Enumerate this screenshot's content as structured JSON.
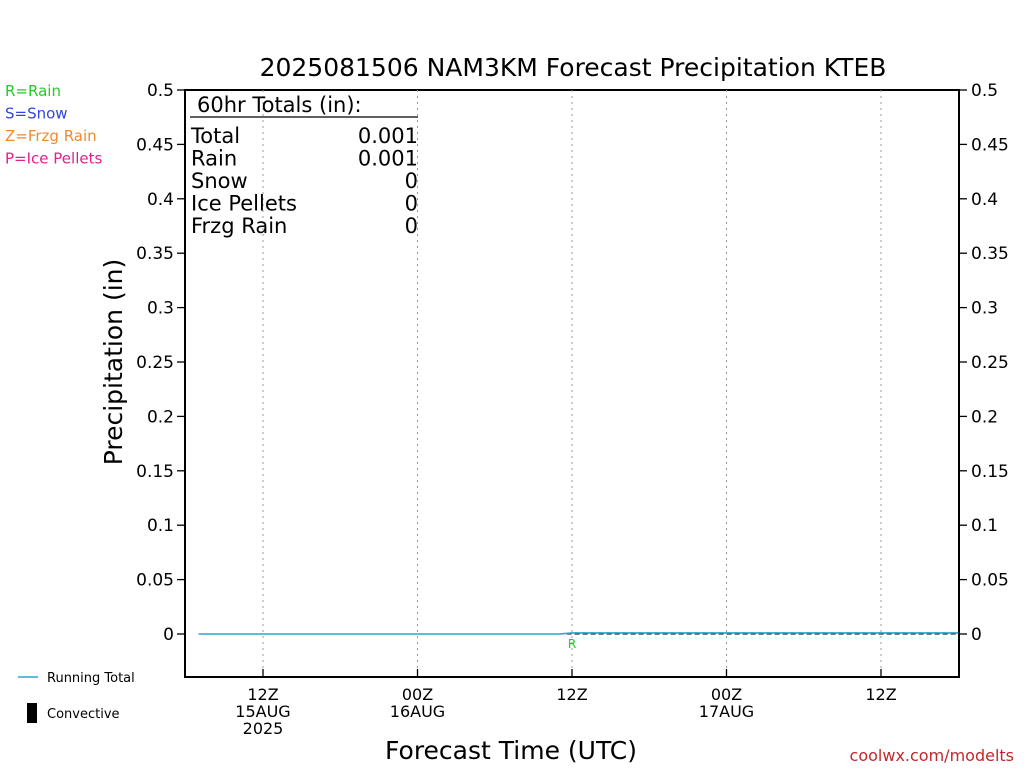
{
  "title": "2025081506 NAM3KM Forecast Precipitation KTEB",
  "xlabel": "Forecast Time (UTC)",
  "ylabel": "Precipitation (in)",
  "credit": "coolwx.com/modelts",
  "legend_left": [
    {
      "text": "R=Rain",
      "color": "#22cc22"
    },
    {
      "text": "S=Snow",
      "color": "#3344dd"
    },
    {
      "text": "Z=Frzg Rain",
      "color": "#f08a30"
    },
    {
      "text": "P=Ice Pellets",
      "color": "#e0208c"
    }
  ],
  "legend_bottom": {
    "running_total": "Running Total",
    "running_total_color": "#22aacc",
    "convective": "Convective",
    "convective_color": "#000000"
  },
  "totals_box": {
    "header": "60hr Totals (in):",
    "rows": [
      {
        "label": "Total",
        "value": "0.001"
      },
      {
        "label": "Rain",
        "value": "0.001"
      },
      {
        "label": "Snow",
        "value": "0"
      },
      {
        "label": "Ice Pellets",
        "value": "0"
      },
      {
        "label": "Frzg Rain",
        "value": "0"
      }
    ]
  },
  "chart_data": {
    "type": "line",
    "title": "2025081506 NAM3KM Forecast Precipitation KTEB",
    "xlabel": "Forecast Time (UTC)",
    "ylabel": "Precipitation (in)",
    "ylim": [
      -0.04,
      0.5
    ],
    "xlim_hours": [
      0,
      60
    ],
    "y_ticks": [
      0,
      0.05,
      0.1,
      0.15,
      0.2,
      0.25,
      0.3,
      0.35,
      0.4,
      0.45,
      0.5
    ],
    "y_tick_labels": [
      "0",
      "0.05",
      "0.1",
      "0.15",
      "0.2",
      "0.25",
      "0.3",
      "0.35",
      "0.4",
      "0.45",
      "0.5"
    ],
    "x_ticks": [
      {
        "hour": 6,
        "lines": [
          "12Z",
          "15AUG",
          "2025"
        ]
      },
      {
        "hour": 18,
        "lines": [
          "00Z",
          "16AUG"
        ]
      },
      {
        "hour": 30,
        "lines": [
          "12Z"
        ]
      },
      {
        "hour": 42,
        "lines": [
          "00Z",
          "17AUG"
        ]
      },
      {
        "hour": 54,
        "lines": [
          "12Z"
        ]
      }
    ],
    "grid": "vertical-dotted",
    "series": [
      {
        "name": "Running Total",
        "color": "#22aacc",
        "x_hours": [
          1,
          29,
          30,
          60
        ],
        "values": [
          0,
          0,
          0.001,
          0.001
        ]
      }
    ],
    "type_markers": [
      {
        "hour": 30,
        "letter": "R",
        "color": "#22cc22"
      }
    ]
  }
}
